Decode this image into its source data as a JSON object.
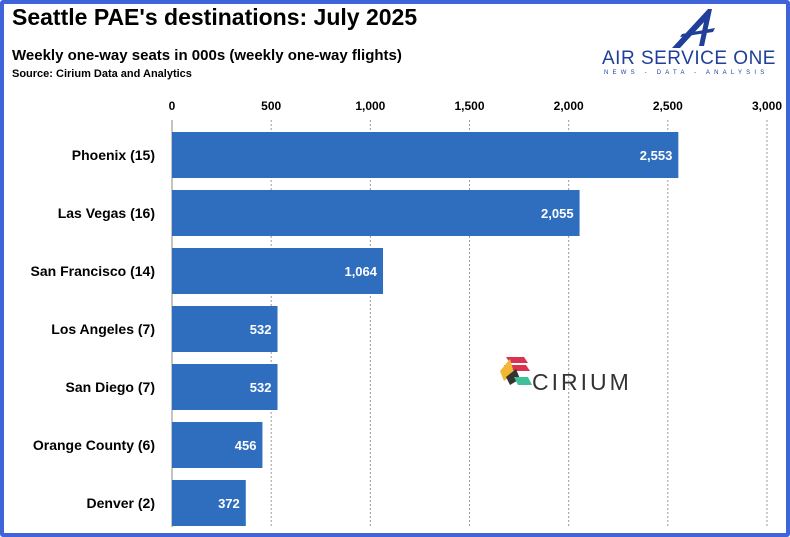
{
  "chart_data": {
    "type": "bar",
    "orientation": "horizontal",
    "title": "Seattle PAE's destinations: July 2025",
    "subtitle": "Weekly one-way seats in 000s (weekly one-way flights)",
    "source": "Source: Cirium Data and Analytics",
    "categories": [
      "Phoenix (15)",
      "Las Vegas (16)",
      "San Francisco (14)",
      "Los Angeles (7)",
      "San Diego (7)",
      "Orange County (6)",
      "Denver (2)"
    ],
    "values": [
      2553,
      2055,
      1064,
      532,
      532,
      456,
      372
    ],
    "value_labels": [
      "2,553",
      "2,055",
      "1,064",
      "532",
      "532",
      "456",
      "372"
    ],
    "xlim": [
      0,
      3000
    ],
    "xticks": [
      0,
      500,
      1000,
      1500,
      2000,
      2500,
      3000
    ],
    "xtick_labels": [
      "0",
      "500",
      "1,000",
      "1,500",
      "2,000",
      "2,500",
      "3,000"
    ],
    "xaxis_position": "top",
    "grid": "vertical dashed",
    "bar_color": "#2f6ebf"
  },
  "logo": {
    "name": "AIR SERVICE ONE",
    "tagline": "NEWS - DATA - ANALYSIS"
  },
  "watermark": {
    "name": "CIRIUM"
  }
}
